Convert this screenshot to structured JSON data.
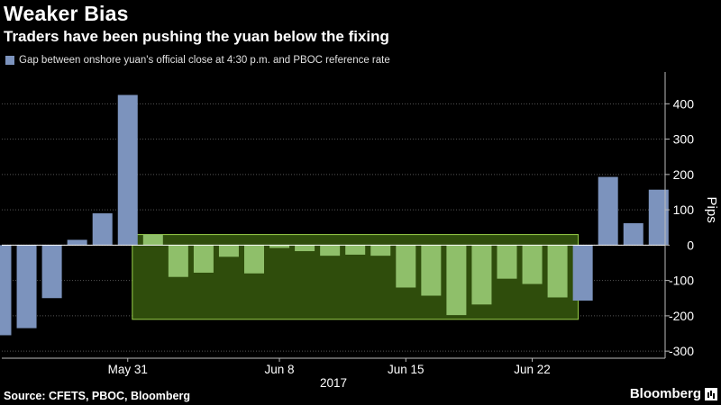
{
  "header": {
    "title": "Weaker Bias",
    "subtitle": "Traders have been pushing the yuan below the fixing"
  },
  "footer": {
    "source": "Source: CFETS, PBOC, Bloomberg",
    "brand": "Bloomberg"
  },
  "colors": {
    "background": "#000000",
    "positive_bar": "#7c93bd",
    "highlighted_bar": "#8fbf6a",
    "highlight_box_fill": "#2f4d0c",
    "highlight_box_stroke": "#9ad14a",
    "grid": "#555555",
    "axis": "#bbbbbb"
  },
  "chart_data": {
    "type": "bar",
    "ylabel": "Pips",
    "ylim": [
      -320,
      490
    ],
    "yticks": [
      -300,
      -200,
      -100,
      0,
      100,
      200,
      300,
      400
    ],
    "grid": true,
    "y_axis_side": "right",
    "legend": {
      "position": "top-left",
      "entries": [
        "Gap between onshore yuan's official close at 4:30 p.m. and PBOC reference rate"
      ]
    },
    "series": [
      {
        "name": "Gap between onshore yuan's official close at 4:30 p.m. and PBOC reference rate",
        "x": [
          "2017-05-22",
          "2017-05-23",
          "2017-05-24",
          "2017-05-25",
          "2017-05-26",
          "2017-05-31",
          "2017-06-01",
          "2017-06-02",
          "2017-06-05",
          "2017-06-06",
          "2017-06-07",
          "2017-06-08",
          "2017-06-09",
          "2017-06-12",
          "2017-06-13",
          "2017-06-14",
          "2017-06-15",
          "2017-06-16",
          "2017-06-19",
          "2017-06-20",
          "2017-06-21",
          "2017-06-22",
          "2017-06-23",
          "2017-06-26",
          "2017-06-27",
          "2017-06-28",
          "2017-06-29"
        ],
        "values": [
          -255,
          -235,
          -150,
          15,
          90,
          425,
          30,
          -90,
          -78,
          -33,
          -80,
          -8,
          -17,
          -30,
          -27,
          -30,
          -120,
          -143,
          -198,
          -168,
          -95,
          -110,
          -148,
          -157,
          193,
          62,
          157
        ]
      }
    ],
    "highlighted_range": {
      "from": "2017-06-01",
      "to": "2017-06-23"
    },
    "x_tick_labels": [
      {
        "x": "2017-05-31",
        "label": "May 31"
      },
      {
        "x": "2017-06-08",
        "label": "Jun 8"
      },
      {
        "x": "2017-06-15",
        "label": "Jun 15"
      },
      {
        "x": "2017-06-22",
        "label": "Jun 22"
      }
    ],
    "year_label": "2017"
  }
}
